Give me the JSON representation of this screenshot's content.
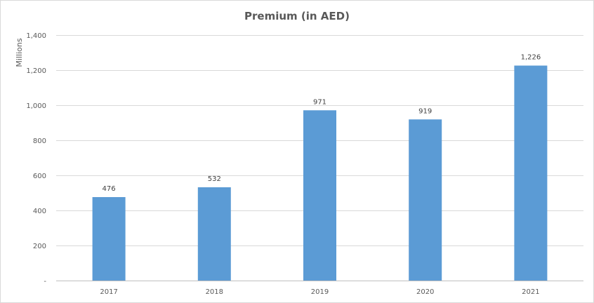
{
  "chart_data": {
    "type": "bar",
    "title": "Premium (in AED)",
    "unit_label": "Millions",
    "xlabel": "",
    "ylabel": "",
    "categories": [
      "2017",
      "2018",
      "2019",
      "2020",
      "2021"
    ],
    "values": [
      476,
      532,
      971,
      919,
      1226
    ],
    "value_labels": [
      "476",
      "532",
      "971",
      "919",
      "1,226"
    ],
    "ylim": [
      0,
      1400
    ],
    "yticks": [
      0,
      200,
      400,
      600,
      800,
      1000,
      1200,
      1400
    ],
    "ytick_labels": [
      "-",
      "200",
      "400",
      "600",
      "800",
      "1,000",
      "1,200",
      "1,400"
    ],
    "grid": true,
    "legend": "none",
    "bar_color": "#5b9bd5"
  }
}
